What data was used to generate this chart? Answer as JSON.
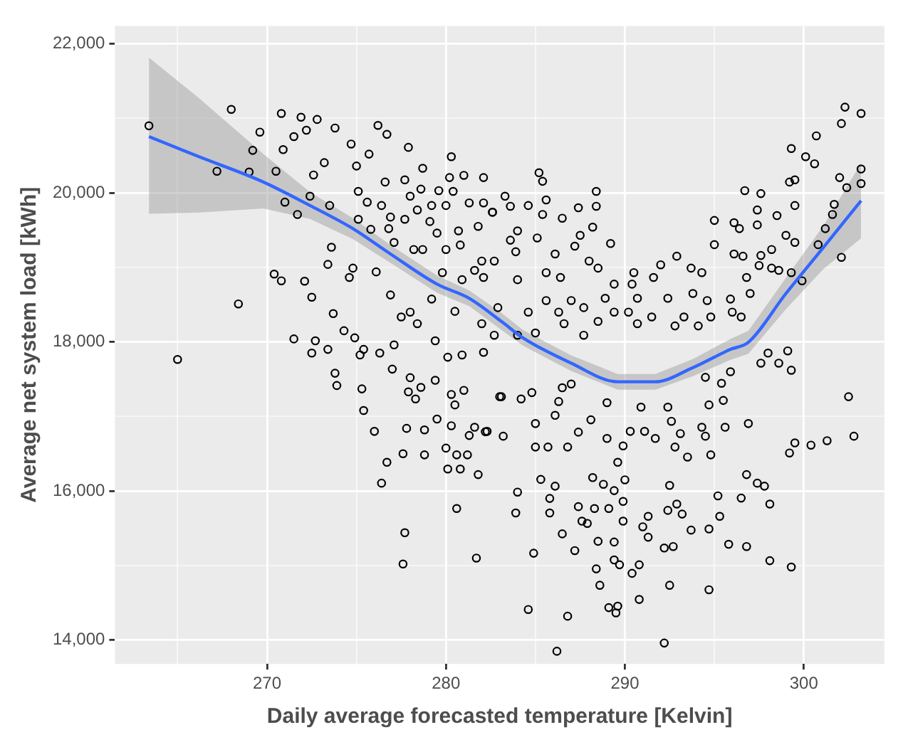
{
  "chart_data": {
    "type": "scatter",
    "xlabel": "Daily average forecasted temperature [Kelvin]",
    "ylabel": "Average net system load [kWh]",
    "xlim": [
      261.5,
      304.5
    ],
    "xticks": [
      {
        "value": 265,
        "label": null
      },
      270,
      {
        "value": 275,
        "label": null
      },
      280,
      {
        "value": 285,
        "label": null
      },
      290,
      {
        "value": 295,
        "label": null
      },
      300
    ],
    "ylim": [
      13680,
      22240
    ],
    "yticks": [
      {
        "value": 14000,
        "label": "14,000"
      },
      {
        "value": 15000,
        "label": null
      },
      {
        "value": 16000,
        "label": "16,000"
      },
      {
        "value": 17000,
        "label": null
      },
      {
        "value": 18000,
        "label": "18,000"
      },
      {
        "value": 19000,
        "label": null
      },
      {
        "value": 20000,
        "label": "20,000"
      },
      {
        "value": 21000,
        "label": null
      },
      {
        "value": 22000,
        "label": "22,000"
      }
    ],
    "grid": true,
    "legend": false,
    "marker": "circle",
    "series": [
      {
        "color": "#000000",
        "x": [
          263.4,
          268.0,
          267.2,
          270.8,
          271.9,
          272.8,
          269.6,
          269.2,
          269.0,
          270.5,
          271.0,
          271.7,
          272.4,
          270.9,
          271.5,
          272.2,
          273.2,
          272.6,
          273.8,
          273.5,
          273.6,
          273.4,
          270.4,
          270.8,
          268.4,
          272.1,
          272.5,
          273.7,
          274.8,
          274.6,
          276.1,
          276.9,
          274.3,
          276.2,
          276.7,
          274.7,
          275.0,
          275.7,
          276.6,
          275.1,
          275.6,
          276.4,
          276.9,
          275.1,
          275.8,
          276.8,
          277.1,
          277.9,
          278.7,
          277.7,
          278.0,
          278.6,
          277.7,
          278.4,
          280.3,
          280.2,
          281.0,
          279.6,
          280.4,
          279.2,
          280.0,
          279.1,
          279.5,
          278.2,
          278.7,
          280.0,
          280.8,
          280.7,
          282.1,
          282.1,
          281.3,
          281.8,
          282.6,
          281.6,
          282.1,
          282.0,
          279.8,
          280.9,
          279.2,
          280.5,
          278.4,
          278.0,
          277.5,
          282.0,
          302.3,
          303.2,
          302.1,
          300.7,
          303.2,
          303.2,
          302.4,
          302.0,
          299.3,
          300.1,
          300.6,
          299.5,
          299.2,
          301.7,
          301.6,
          299.5,
          298.5,
          296.7,
          297.6,
          297.4,
          297.4,
          299.0,
          299.5,
          300.8,
          301.2,
          302.1,
          295.0,
          296.1,
          296.4,
          295.0,
          296.1,
          296.6,
          297.6,
          298.2,
          298.2,
          298.6,
          299.3,
          297.5,
          296.8,
          297.0,
          299.9,
          285.2,
          285.4,
          285.6,
          285.4,
          284.6,
          283.3,
          283.6,
          282.6,
          284.0,
          283.6,
          285.1,
          283.9,
          286.5,
          288.4,
          288.4,
          288.2,
          287.4,
          287.5,
          287.2,
          286.1,
          289.2,
          288.5,
          288.0,
          285.6,
          286.4,
          284.0,
          282.7,
          292.9,
          292.0,
          290.5,
          291.6,
          293.7,
          294.3,
          289.4,
          290.4,
          288.9,
          290.7,
          292.4,
          293.8,
          294.6,
          287.0,
          285.6,
          287.7,
          284.6,
          286.3,
          289.4,
          290.2,
          291.5,
          293.3,
          294.8,
          296.0,
          296.5,
          282.9,
          282.7,
          285.0,
          286.6,
          288.5,
          290.7,
          292.8,
          294.1,
          287.7,
          284.0,
          295.9,
          265.0,
          271.5,
          272.7,
          272.5,
          273.4,
          273.8,
          273.9,
          274.9,
          275.2,
          275.4,
          276.3,
          277.1,
          275.3,
          275.4,
          277.0,
          276.0,
          276.7,
          276.4,
          277.6,
          277.7,
          277.6,
          277.8,
          278.0,
          278.6,
          277.9,
          278.3,
          278.8,
          278.8,
          279.4,
          279.5,
          279.4,
          280.1,
          280.9,
          280.3,
          280.5,
          281.0,
          280.3,
          280.0,
          280.6,
          281.2,
          280.1,
          280.8,
          281.8,
          280.6,
          281.7,
          281.3,
          281.6,
          282.2,
          282.1,
          283.0,
          283.1,
          284.2,
          284.8,
          286.3,
          286.1,
          286.5,
          287.0,
          285.0,
          283.2,
          282.3,
          285.0,
          285.7,
          286.8,
          287.4,
          288.1,
          289.0,
          289.0,
          289.9,
          290.3,
          291.1,
          291.7,
          292.4,
          290.9,
          292.6,
          293.1,
          292.8,
          294.3,
          294.5,
          293.5,
          294.8,
          294.7,
          295.5,
          295.6,
          296.9,
          297.6,
          298.0,
          298.6,
          299.1,
          299.3,
          295.9,
          295.4,
          294.5,
          299.5,
          299.2,
          300.4,
          301.3,
          302.5,
          302.8,
          296.8,
          297.4,
          297.8,
          296.5,
          298.1,
          295.2,
          295.3,
          294.7,
          293.7,
          293.2,
          292.9,
          292.4,
          292.5,
          291.3,
          291.0,
          291.3,
          289.9,
          289.9,
          290.0,
          289.6,
          289.4,
          289.1,
          288.8,
          288.2,
          288.3,
          287.4,
          287.6,
          287.9,
          288.5,
          289.4,
          287.2,
          286.5,
          285.8,
          285.8,
          286.1,
          285.3,
          284.0,
          283.9,
          284.9,
          288.4,
          288.6,
          289.4,
          289.7,
          290.8,
          290.4,
          290.8,
          289.1,
          289.6,
          289.5,
          292.5,
          292.2,
          294.7,
          295.8,
          296.8,
          298.1,
          299.3,
          284.6,
          286.8,
          286.2,
          292.2,
          292.7
        ],
        "values": [
          20900,
          21120,
          20290,
          21065,
          21015,
          20985,
          20815,
          20570,
          20280,
          20290,
          19875,
          19710,
          19955,
          20580,
          20755,
          20840,
          20405,
          20240,
          20870,
          19830,
          19270,
          19040,
          18910,
          18820,
          18510,
          18815,
          18600,
          18380,
          18990,
          18865,
          18940,
          18630,
          18150,
          20905,
          20785,
          20655,
          20360,
          20520,
          20145,
          20020,
          19875,
          19830,
          19675,
          19645,
          19510,
          19520,
          19335,
          20610,
          20330,
          20175,
          19955,
          20050,
          19645,
          19770,
          20485,
          20205,
          20235,
          20030,
          20020,
          19830,
          19830,
          19615,
          19460,
          19240,
          19240,
          19240,
          19300,
          19490,
          20205,
          19865,
          19865,
          19550,
          19740,
          18960,
          18865,
          19085,
          18930,
          18835,
          18575,
          18410,
          18245,
          18400,
          18335,
          18245,
          21150,
          21065,
          20930,
          20765,
          20320,
          20125,
          20070,
          20205,
          20595,
          20485,
          20390,
          20175,
          20145,
          19845,
          19710,
          19830,
          19695,
          20030,
          19990,
          19770,
          19570,
          19430,
          19335,
          19305,
          19520,
          19135,
          19630,
          19600,
          19520,
          19305,
          19180,
          19150,
          19160,
          19240,
          18990,
          18960,
          18930,
          19025,
          18865,
          18650,
          18820,
          20270,
          20155,
          19905,
          19710,
          19830,
          19955,
          19820,
          19740,
          19490,
          19365,
          19395,
          19210,
          19660,
          20020,
          19820,
          19540,
          19800,
          19430,
          19285,
          19180,
          19320,
          18990,
          19085,
          18930,
          18865,
          18835,
          19085,
          19150,
          19035,
          18930,
          18865,
          18990,
          18930,
          18775,
          18775,
          18585,
          18585,
          18585,
          18650,
          18555,
          18555,
          18555,
          18460,
          18400,
          18400,
          18400,
          18400,
          18335,
          18335,
          18335,
          18400,
          18335,
          18460,
          18090,
          18120,
          18245,
          18275,
          18245,
          18215,
          18215,
          18090,
          18090,
          18575,
          17765,
          18040,
          18015,
          17850,
          17900,
          17580,
          17415,
          18055,
          17825,
          17900,
          17850,
          17960,
          17370,
          17080,
          17635,
          16800,
          16385,
          16105,
          16500,
          15440,
          15020,
          16840,
          17520,
          17390,
          17330,
          17235,
          16820,
          16485,
          17485,
          16965,
          18015,
          17795,
          17825,
          17295,
          17155,
          17350,
          16875,
          16575,
          16485,
          16485,
          16295,
          16295,
          16220,
          15765,
          15100,
          16745,
          16855,
          16795,
          17860,
          17265,
          17265,
          17235,
          17320,
          17200,
          17015,
          17385,
          17435,
          16905,
          16735,
          16800,
          16590,
          16590,
          16590,
          16790,
          16955,
          17185,
          16705,
          16605,
          16800,
          16800,
          16705,
          17125,
          17125,
          16935,
          16770,
          16590,
          16855,
          16735,
          16455,
          16485,
          17155,
          17215,
          16855,
          16905,
          17715,
          17850,
          17715,
          17880,
          17620,
          17600,
          17445,
          17525,
          16645,
          16510,
          16615,
          16675,
          17265,
          16735,
          16220,
          16105,
          16065,
          15905,
          15825,
          15935,
          15660,
          15490,
          15475,
          15690,
          15825,
          15740,
          16075,
          15660,
          15520,
          15380,
          15860,
          15595,
          16150,
          16385,
          16005,
          15765,
          16090,
          16180,
          15765,
          15790,
          15595,
          15565,
          15325,
          15315,
          15200,
          15425,
          15900,
          15705,
          16065,
          16155,
          15985,
          15705,
          15165,
          14955,
          14735,
          15075,
          15010,
          15010,
          14895,
          14545,
          14435,
          14455,
          14365,
          14735,
          13960,
          14675,
          15285,
          15255,
          15065,
          14980,
          14410,
          14320,
          13850,
          15235,
          15255
        ]
      },
      {
        "type": "line",
        "color": "#3366ff",
        "marker": "none",
        "x": [
          263.4,
          266.2,
          269.8,
          272.4,
          274.8,
          276.9,
          279.5,
          281.3,
          283.1,
          284.3,
          287.0,
          289.6,
          291.7,
          293.8,
          295.9,
          296.9,
          299.0,
          301.1,
          303.2
        ],
        "values": [
          20755,
          20485,
          20145,
          19830,
          19520,
          19180,
          18775,
          18585,
          18275,
          18055,
          17715,
          17465,
          17465,
          17655,
          17900,
          17995,
          18650,
          19270,
          19895
        ],
        "upper": [
          21815,
          21270,
          20520,
          20010,
          19660,
          19300,
          18890,
          18690,
          18390,
          18160,
          17820,
          17570,
          17570,
          17770,
          18040,
          18150,
          18860,
          19560,
          20400
        ],
        "lower": [
          19720,
          19735,
          19790,
          19650,
          19380,
          19060,
          18660,
          18480,
          18160,
          17950,
          17610,
          17360,
          17360,
          17540,
          17760,
          17840,
          18440,
          18980,
          19390
        ]
      }
    ]
  }
}
